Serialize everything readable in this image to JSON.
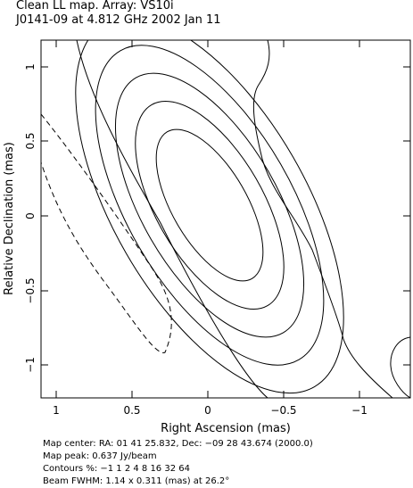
{
  "chart_data": {
    "type": "contour",
    "title": "Clean LL map.  Array:  VS10i",
    "subtitle": "J0141-09 at 4.812 GHz 2002 Jan 11",
    "xlabel": "Right Ascension  (mas)",
    "ylabel": "Relative Declination  (mas)",
    "xlim": [
      1.1,
      -1.35
    ],
    "ylim": [
      -1.2,
      1.2
    ],
    "x_ticks": [
      "1",
      "0.5",
      "0",
      "−0.5",
      "−1"
    ],
    "y_ticks": [
      "−1",
      "−0.5",
      "0",
      "0.5",
      "1"
    ],
    "contour_levels_percent": [
      -1,
      1,
      2,
      4,
      8,
      16,
      32,
      64
    ],
    "beam": {
      "major_mas": 1.14,
      "minor_mas": 0.311,
      "pa_deg": 26.2
    },
    "footer": [
      "Map center:  RA: 01 41 25.832,  Dec: −09 28 43.674 (2000.0)",
      "Map peak: 0.637 Jy/beam",
      "Contours %: −1 1 2 4 8 16 32 64",
      "Beam FWHM: 1.14 x 0.311 (mas) at 26.2°"
    ]
  }
}
